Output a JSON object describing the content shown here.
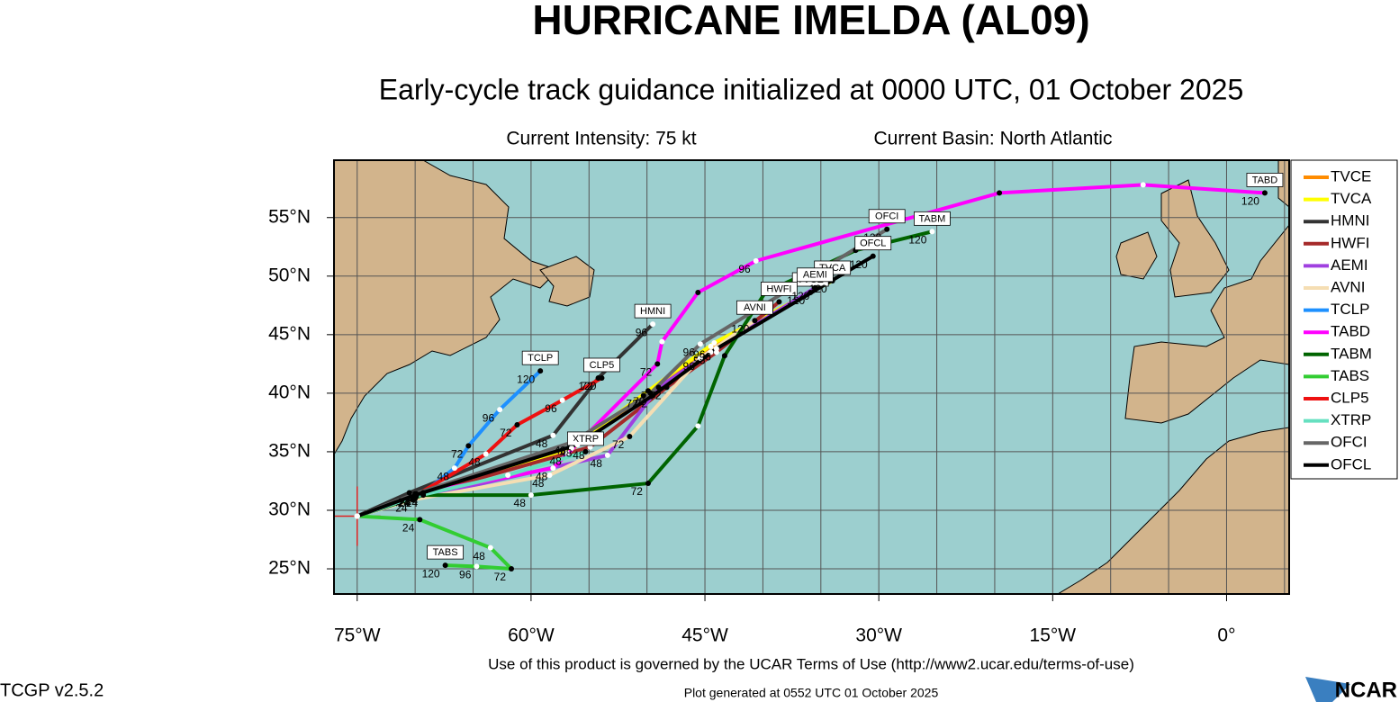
{
  "header": {
    "title": "HURRICANE IMELDA (AL09)",
    "subtitle": "Early-cycle track guidance initialized at 0000 UTC, 01 October 2025",
    "intensity": "Current Intensity: 75 kt",
    "basin": "Current Basin: North Atlantic"
  },
  "map": {
    "type": "track-map",
    "xlim": [
      -77,
      5.4
    ],
    "ylim": [
      22.85,
      59.9
    ],
    "xticks": [
      {
        "value": -75,
        "label": "75°W"
      },
      {
        "value": -60,
        "label": "60°W"
      },
      {
        "value": -45,
        "label": "45°W"
      },
      {
        "value": -30,
        "label": "30°W"
      },
      {
        "value": -15,
        "label": "15°W"
      },
      {
        "value": 0,
        "label": "0°"
      }
    ],
    "yticks": [
      {
        "value": 25,
        "label": "25°N"
      },
      {
        "value": 30,
        "label": "30°N"
      },
      {
        "value": 35,
        "label": "35°N"
      },
      {
        "value": 40,
        "label": "40°N"
      },
      {
        "value": 45,
        "label": "45°N"
      },
      {
        "value": 50,
        "label": "50°N"
      },
      {
        "value": 55,
        "label": "55°N"
      }
    ],
    "grid_lon": [
      -75,
      -70,
      -65,
      -60,
      -55,
      -50,
      -45,
      -40,
      -35,
      -30,
      -25,
      -20,
      -15,
      -10,
      -5,
      0,
      5
    ],
    "grid_lat": [
      25,
      30,
      35,
      40,
      45,
      50,
      55
    ],
    "current_position": {
      "lon": -75,
      "lat": 29.5
    },
    "tracks": [
      {
        "name": "TVCE",
        "color": "#ff8c00",
        "lon": [
          -75,
          -69.9,
          -56.9,
          -50.3,
          -44.5,
          -35.9
        ],
        "lat": [
          29.5,
          31.3,
          34.9,
          39.8,
          44.0,
          48.6
        ],
        "tau": [
          null,
          "24",
          "48",
          "72",
          "96",
          "120"
        ]
      },
      {
        "name": "TVCA",
        "color": "#ffff00",
        "lon": [
          -75,
          -69.9,
          -56.5,
          -49.9,
          -44.2,
          -34.0
        ],
        "lat": [
          29.5,
          31.4,
          35.3,
          40.2,
          44.3,
          49.6
        ],
        "tau": [
          null,
          null,
          null,
          null,
          null,
          "120"
        ]
      },
      {
        "name": "HMNI",
        "color": "#333333",
        "lon": [
          -75,
          -70.5,
          -58.1,
          -54.2,
          -49.5
        ],
        "lat": [
          29.5,
          31.5,
          36.4,
          41.3,
          45.9
        ],
        "tau": [
          null,
          null,
          "48",
          "72",
          "96"
        ]
      },
      {
        "name": "HWFI",
        "color": "#a52a2a",
        "lon": [
          -75,
          -70.0,
          -54.9,
          -48.3,
          -44.0,
          -38.6
        ],
        "lat": [
          29.5,
          31.2,
          35.4,
          40.5,
          43.5,
          47.8
        ],
        "tau": [
          null,
          null,
          "48",
          "72",
          null,
          "120"
        ]
      },
      {
        "name": "AEMI",
        "color": "#a040e0",
        "lon": [
          -75,
          -70.0,
          -53.4,
          -49.0,
          -44.5,
          -35.5
        ],
        "lat": [
          29.5,
          31.0,
          34.7,
          40.5,
          43.5,
          49.0
        ],
        "tau": [
          null,
          null,
          "48",
          "72",
          "96",
          "120"
        ]
      },
      {
        "name": "AVNI",
        "color": "#f5deb3",
        "lon": [
          -75,
          -70.2,
          -58.4,
          -51.5,
          -45.4,
          -40.7
        ],
        "lat": [
          29.5,
          30.9,
          33.0,
          36.3,
          43.0,
          46.2
        ],
        "tau": [
          null,
          "24",
          "48",
          "72",
          "96",
          "120"
        ]
      },
      {
        "name": "TCLP",
        "color": "#1e90ff",
        "lon": [
          -75,
          -69.3,
          -66.6,
          -65.4,
          -62.7,
          -59.2
        ],
        "lat": [
          29.5,
          31.5,
          33.6,
          35.5,
          38.6,
          41.9
        ],
        "tau": [
          null,
          "24",
          "48",
          "72",
          "96",
          "120"
        ]
      },
      {
        "name": "TABD",
        "color": "#ff00ff",
        "lon": [
          -75,
          -69.3,
          -58.1,
          -49.1,
          -48.7,
          -45.6,
          -40.6,
          -19.6,
          -7.2,
          3.3
        ],
        "lat": [
          29.5,
          31.5,
          33.6,
          42.5,
          44.4,
          48.6,
          51.3,
          57.1,
          57.8,
          57.1
        ],
        "tau": [
          null,
          "24",
          "48",
          "72",
          null,
          null,
          "96",
          null,
          null,
          "120"
        ]
      },
      {
        "name": "TABM",
        "color": "#006400",
        "lon": [
          -75,
          -69.3,
          -60.0,
          -49.9,
          -45.6,
          -43.3,
          -39.8,
          -32.0,
          -25.4
        ],
        "lat": [
          29.5,
          31.3,
          31.3,
          32.3,
          37.2,
          43.2,
          48.6,
          52.2,
          53.8
        ],
        "tau": [
          null,
          "24",
          "48",
          "72",
          null,
          null,
          null,
          null,
          "120"
        ]
      },
      {
        "name": "TABS",
        "color": "#32cd32",
        "lon": [
          -75,
          -69.6,
          -63.5,
          -61.7,
          -64.7,
          -67.4
        ],
        "lat": [
          29.5,
          29.2,
          26.8,
          25.0,
          25.2,
          25.3
        ],
        "tau": [
          null,
          "24",
          "48",
          "72",
          "96",
          "120"
        ]
      },
      {
        "name": "CLP5",
        "color": "#ee1111",
        "lon": [
          -75,
          -69.9,
          -63.9,
          -61.2,
          -57.3,
          -53.9
        ],
        "lat": [
          29.5,
          31.3,
          34.8,
          37.3,
          39.4,
          41.3
        ],
        "tau": [
          null,
          "24",
          "48",
          "72",
          "96",
          "120"
        ]
      },
      {
        "name": "XTRP",
        "color": "#66e0c0",
        "lon": [
          -75,
          -69.9,
          -62.0,
          -55.3
        ],
        "lat": [
          29.5,
          31.2,
          33.0,
          35.0
        ],
        "tau": [
          null,
          null,
          null,
          null
        ]
      },
      {
        "name": "OFCI",
        "color": "#666666",
        "lon": [
          -75,
          -70.0,
          -56.5,
          -49.7,
          -45.4,
          -29.3
        ],
        "lat": [
          29.5,
          31.4,
          35.8,
          40.0,
          44.2,
          54.0
        ],
        "tau": [
          null,
          "24",
          "48",
          "72",
          "96",
          "120"
        ]
      },
      {
        "name": "OFCL",
        "color": "#000000",
        "lon": [
          -75,
          -70.0,
          -56.0,
          -49.5,
          -44.0,
          -30.5
        ],
        "lat": [
          29.5,
          31.3,
          35.6,
          39.8,
          43.8,
          51.7
        ],
        "tau": [
          null,
          "24",
          "48",
          "72",
          "96",
          "120"
        ]
      }
    ]
  },
  "footer": {
    "terms": "Use of this product is governed by the UCAR Terms of Use (http://www2.ucar.edu/terms-of-use)",
    "generated": "Plot generated at 0552 UTC   01 October 2025",
    "version": "TCGP v2.5.2",
    "logo": "NCAR"
  }
}
